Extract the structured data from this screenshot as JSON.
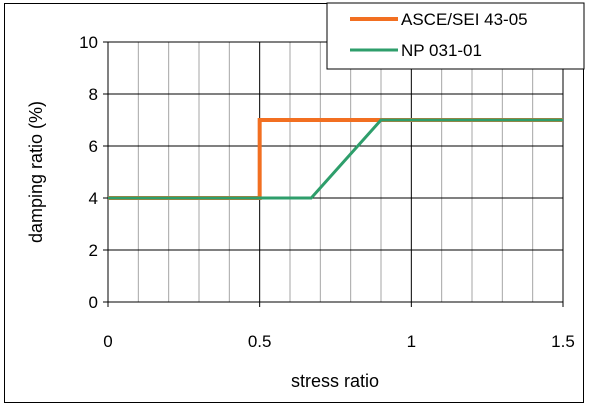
{
  "chart_data": {
    "type": "line",
    "title": "",
    "xlabel": "stress ratio",
    "ylabel": "damping ratio (%)",
    "xlim": [
      0,
      1.5
    ],
    "ylim": [
      0,
      10
    ],
    "x_ticks": [
      0,
      0.5,
      1,
      1.5
    ],
    "x_tick_labels": [
      "0",
      "0.5",
      "1",
      "1.5"
    ],
    "y_ticks": [
      0,
      2,
      4,
      6,
      8,
      10
    ],
    "y_tick_labels": [
      "0",
      "2",
      "4",
      "6",
      "8",
      "10"
    ],
    "grid": true,
    "legend_position": "top-right",
    "series": [
      {
        "name": "ASCE/SEI 43-05",
        "color": "#f26f21",
        "points": [
          [
            0,
            4
          ],
          [
            0.5,
            4
          ],
          [
            0.5,
            7
          ],
          [
            1.5,
            7
          ]
        ]
      },
      {
        "name": "NP 031-01",
        "color": "#2e9e6b",
        "points": [
          [
            0,
            4
          ],
          [
            0.67,
            4
          ],
          [
            0.9,
            7
          ],
          [
            1.5,
            7
          ]
        ]
      }
    ]
  }
}
